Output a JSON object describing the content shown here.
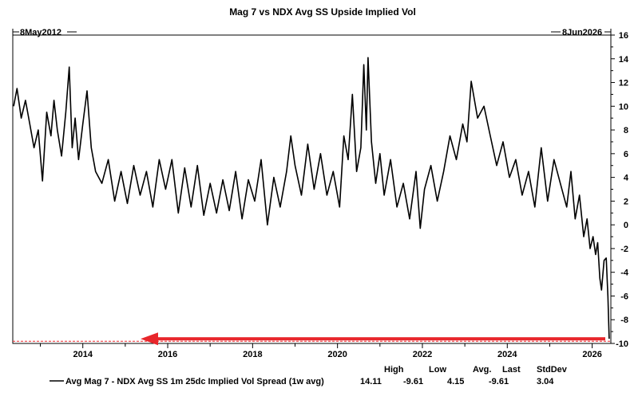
{
  "chart_data": {
    "type": "line",
    "title": "Mag 7 vs NDX Avg SS Upside Implied Vol",
    "start_date_label": "8May2012",
    "end_date_label": "8Jun2026",
    "x_ticks": [
      "2014",
      "2016",
      "2018",
      "2020",
      "2022",
      "2024",
      "2026"
    ],
    "y_ticks": [
      "16",
      "14",
      "12",
      "10",
      "8",
      "6",
      "4",
      "2",
      "0",
      "-2",
      "-4",
      "-6",
      "-8",
      "-10"
    ],
    "ylim": [
      -10,
      16
    ],
    "xlim": [
      2012.35,
      2026.44
    ],
    "grid": false,
    "series": [
      {
        "name": "Avg Mag 7 - NDX Avg SS 1m 25dc Implied Vol Spread (1w avg)",
        "color": "#000000",
        "x": [
          2012.37,
          2012.45,
          2012.55,
          2012.65,
          2012.75,
          2012.85,
          2012.95,
          2013.05,
          2013.15,
          2013.25,
          2013.32,
          2013.4,
          2013.5,
          2013.6,
          2013.68,
          2013.75,
          2013.82,
          2013.9,
          2014.0,
          2014.1,
          2014.2,
          2014.3,
          2014.45,
          2014.6,
          2014.75,
          2014.9,
          2015.05,
          2015.2,
          2015.35,
          2015.5,
          2015.65,
          2015.8,
          2015.95,
          2016.1,
          2016.25,
          2016.4,
          2016.55,
          2016.7,
          2016.85,
          2017.0,
          2017.15,
          2017.3,
          2017.45,
          2017.6,
          2017.75,
          2017.9,
          2018.05,
          2018.2,
          2018.35,
          2018.5,
          2018.65,
          2018.8,
          2018.9,
          2019.0,
          2019.15,
          2019.3,
          2019.45,
          2019.6,
          2019.75,
          2019.9,
          2020.05,
          2020.15,
          2020.25,
          2020.35,
          2020.45,
          2020.55,
          2020.62,
          2020.68,
          2020.72,
          2020.8,
          2020.9,
          2021.0,
          2021.1,
          2021.25,
          2021.4,
          2021.55,
          2021.7,
          2021.85,
          2021.95,
          2022.05,
          2022.2,
          2022.35,
          2022.5,
          2022.65,
          2022.8,
          2022.95,
          2023.05,
          2023.15,
          2023.3,
          2023.45,
          2023.6,
          2023.75,
          2023.9,
          2024.05,
          2024.2,
          2024.35,
          2024.5,
          2024.65,
          2024.8,
          2024.95,
          2025.1,
          2025.25,
          2025.4,
          2025.5,
          2025.6,
          2025.7,
          2025.8,
          2025.88,
          2025.95,
          2026.02,
          2026.08,
          2026.13,
          2026.18,
          2026.22,
          2026.28,
          2026.33,
          2026.37,
          2026.4
        ],
        "y": [
          10.0,
          11.5,
          9.0,
          10.5,
          8.5,
          6.5,
          8.0,
          3.7,
          9.5,
          7.5,
          10.5,
          8.0,
          5.8,
          9.5,
          13.3,
          6.5,
          9.0,
          5.5,
          8.5,
          11.3,
          6.5,
          4.5,
          3.5,
          5.5,
          2.0,
          4.5,
          1.8,
          5.0,
          2.5,
          4.5,
          1.5,
          5.5,
          3.0,
          5.5,
          1.0,
          4.8,
          1.5,
          5.0,
          0.8,
          3.5,
          1.0,
          3.8,
          1.2,
          4.5,
          0.5,
          3.8,
          2.0,
          5.5,
          0.0,
          4.0,
          1.5,
          4.5,
          7.5,
          5.0,
          2.5,
          6.8,
          3.0,
          6.0,
          2.5,
          4.5,
          1.5,
          7.5,
          5.5,
          11.0,
          4.5,
          6.5,
          13.5,
          8.0,
          14.1,
          7.0,
          3.5,
          6.0,
          2.5,
          5.5,
          1.5,
          3.5,
          0.5,
          4.5,
          -0.3,
          3.0,
          5.0,
          2.0,
          4.5,
          7.5,
          5.5,
          8.5,
          7.0,
          12.1,
          9.0,
          10.0,
          7.5,
          5.0,
          7.0,
          4.0,
          5.5,
          2.5,
          4.5,
          1.5,
          6.5,
          2.0,
          5.5,
          3.5,
          1.5,
          4.5,
          0.5,
          2.5,
          -1.0,
          0.5,
          -2.0,
          -1.0,
          -2.5,
          -1.5,
          -4.5,
          -5.5,
          -3.0,
          -2.8,
          -6.0,
          -9.61
        ]
      }
    ],
    "stats_headers": [
      "High",
      "Low",
      "Avg.",
      "Last",
      "StdDev"
    ],
    "stats_values": [
      "14.11",
      "-9.61",
      "4.15",
      "-9.61",
      "3.04"
    ],
    "annotation_arrow_color": "#e8262b",
    "reference_line_color": "#e8262b"
  }
}
